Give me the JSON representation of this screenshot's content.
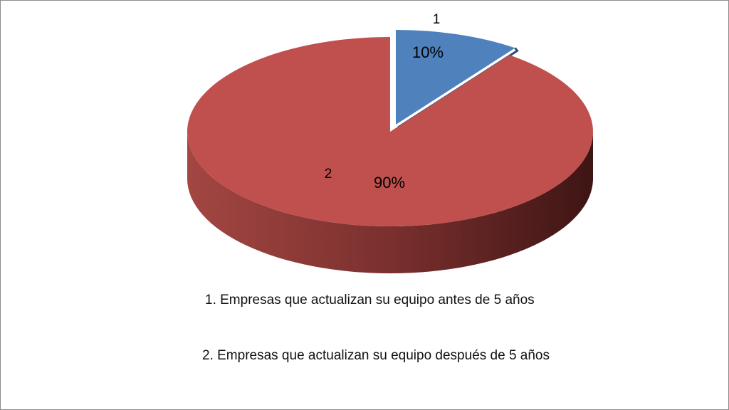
{
  "chart_data": {
    "type": "pie",
    "categories": [
      "1",
      "2"
    ],
    "values": [
      10,
      90
    ],
    "value_labels": [
      "10%",
      "90%"
    ],
    "colors": [
      "#4f81bd",
      "#c0504d"
    ],
    "notes": [
      "1. Empresas que actualizan su equipo antes de 5 años",
      "2. Empresas que actualizan su equipo  después de 5 años"
    ]
  }
}
